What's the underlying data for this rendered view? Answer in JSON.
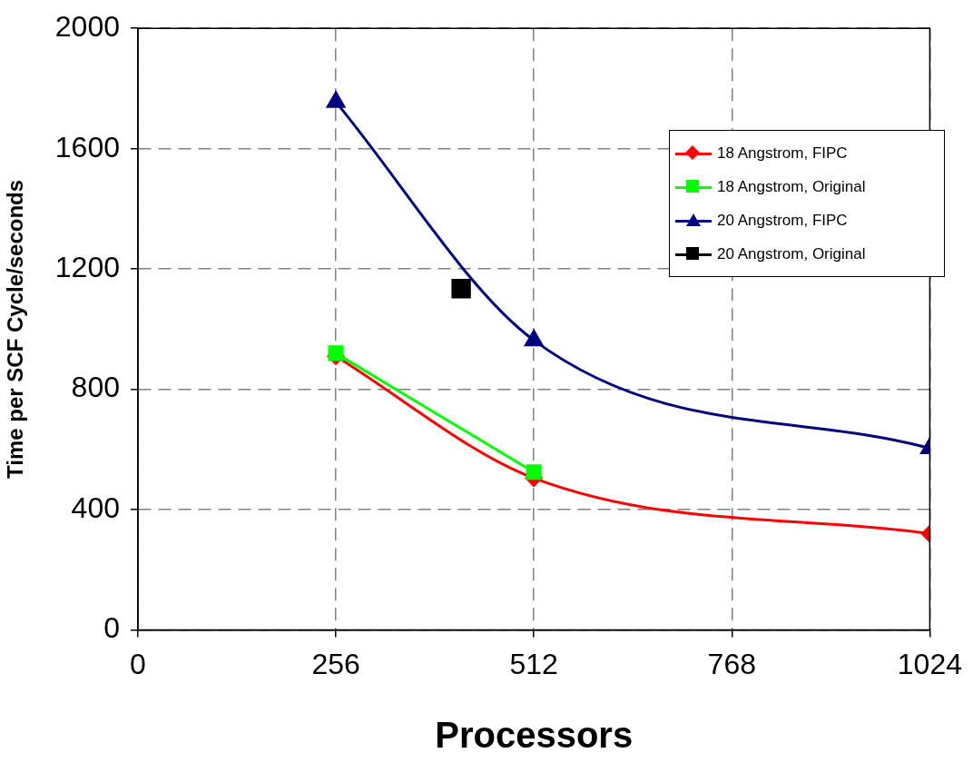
{
  "chart_data": {
    "type": "line",
    "xlabel": "Processors",
    "ylabel": "Time per SCF Cycle/seconds",
    "xlim": [
      0,
      1024
    ],
    "xticks": [
      0,
      256,
      512,
      768,
      1024
    ],
    "ylim": [
      0,
      2000
    ],
    "yticks": [
      0,
      400,
      800,
      1200,
      1600,
      2000
    ],
    "grid": true,
    "legend": "right",
    "series": [
      {
        "name": "18 Angstrom, FIPC",
        "color": "#ff0000",
        "marker": "diamond",
        "x": [
          256,
          512,
          1024
        ],
        "values": [
          910,
          505,
          320
        ]
      },
      {
        "name": "18 Angstrom, Original",
        "color": "#00ff00",
        "marker": "square",
        "x": [
          256,
          512
        ],
        "values": [
          920,
          525
        ]
      },
      {
        "name": "20 Angstrom, FIPC",
        "color": "#000080",
        "marker": "triangle",
        "x": [
          256,
          512,
          1024
        ],
        "values": [
          1755,
          963,
          604
        ]
      },
      {
        "name": "20 Angstrom, Original",
        "color": "#000000",
        "marker": "square",
        "x": [
          418
        ],
        "values": [
          1135
        ]
      }
    ]
  }
}
